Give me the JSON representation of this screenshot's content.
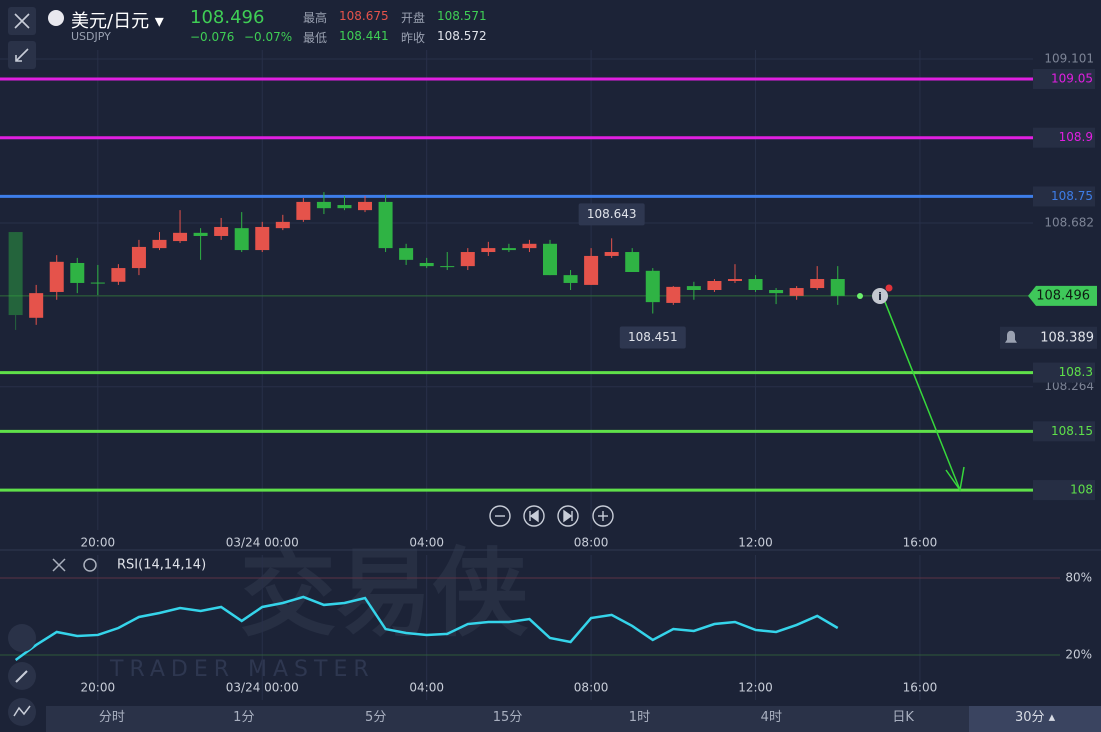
{
  "header": {
    "pair": "美元/日元",
    "symbol": "USDJPY",
    "price": "108.496",
    "change": "−0.076",
    "change_pct": "−0.07%",
    "high_label": "最高",
    "high": "108.675",
    "open_label": "开盘",
    "open": "108.571",
    "low_label": "最低",
    "low": "108.441",
    "prev_label": "昨收",
    "prev": "108.572"
  },
  "watermark": {
    "cn": "交易侠",
    "en": "TRADER MASTER"
  },
  "tabs": [
    "分时",
    "1分",
    "5分",
    "15分",
    "1时",
    "4时",
    "日K",
    "30分"
  ],
  "chart_data": [
    {
      "type": "candlestick",
      "up_color": "#e5534b",
      "down_color": "#2fb344",
      "x": [
        -6,
        -5.5,
        -5,
        -4.5,
        -4,
        -3.5,
        -3,
        -2.5,
        -2,
        -1.5,
        -1,
        -0.5,
        0,
        0.5,
        1,
        1.5,
        2,
        2.5,
        3,
        3.5,
        4,
        4.5,
        5,
        5.5,
        6,
        6.5,
        7,
        7.5,
        8,
        8.5,
        9,
        9.5,
        10,
        10.5,
        11,
        11.5,
        12,
        12.5,
        13,
        13.5,
        14
      ],
      "open": [
        108.659,
        108.44,
        108.506,
        108.58,
        108.53,
        108.532,
        108.567,
        108.618,
        108.636,
        108.657,
        108.649,
        108.669,
        108.613,
        108.669,
        108.69,
        108.736,
        108.728,
        108.715,
        108.736,
        108.618,
        108.58,
        108.572,
        108.572,
        108.608,
        108.618,
        108.618,
        108.629,
        108.549,
        108.524,
        108.598,
        108.608,
        108.56,
        108.478,
        108.521,
        108.511,
        108.534,
        108.539,
        108.511,
        108.496,
        108.516,
        108.539
      ],
      "high": [
        108.659,
        108.524,
        108.6,
        108.593,
        108.575,
        108.577,
        108.639,
        108.659,
        108.715,
        108.669,
        108.695,
        108.71,
        108.685,
        108.703,
        108.746,
        108.761,
        108.751,
        108.751,
        108.754,
        108.629,
        108.593,
        108.608,
        108.618,
        108.634,
        108.629,
        108.639,
        108.639,
        108.562,
        108.618,
        108.643,
        108.618,
        108.567,
        108.521,
        108.532,
        108.539,
        108.577,
        108.549,
        108.516,
        108.521,
        108.572,
        108.572
      ],
      "low": [
        108.409,
        108.422,
        108.486,
        108.503,
        108.498,
        108.524,
        108.549,
        108.613,
        108.631,
        108.588,
        108.639,
        108.608,
        108.608,
        108.664,
        108.685,
        108.705,
        108.715,
        108.71,
        108.608,
        108.575,
        108.567,
        108.562,
        108.562,
        108.598,
        108.608,
        108.608,
        108.549,
        108.511,
        108.524,
        108.593,
        108.557,
        108.451,
        108.473,
        108.486,
        108.506,
        108.529,
        108.506,
        108.475,
        108.486,
        108.511,
        108.473
      ],
      "close": [
        108.447,
        108.503,
        108.583,
        108.529,
        108.529,
        108.567,
        108.621,
        108.639,
        108.657,
        108.649,
        108.672,
        108.613,
        108.672,
        108.685,
        108.736,
        108.72,
        108.72,
        108.736,
        108.618,
        108.588,
        108.572,
        108.571,
        108.608,
        108.618,
        108.613,
        108.629,
        108.549,
        108.529,
        108.598,
        108.608,
        108.557,
        108.48,
        108.519,
        108.511,
        108.534,
        108.539,
        108.511,
        108.503,
        108.516,
        108.539,
        108.496
      ],
      "xlim": [
        -6.38,
        18.75
      ],
      "xticks": [
        {
          "value": -4,
          "label": "20:00"
        },
        {
          "value": 0,
          "label": "03/24 00:00"
        },
        {
          "value": 4,
          "label": "04:00"
        },
        {
          "value": 8,
          "label": "08:00"
        },
        {
          "value": 12,
          "label": "12:00"
        },
        {
          "value": 16,
          "label": "16:00"
        }
      ],
      "ylim": [
        107.898,
        109.124
      ],
      "yticks": [
        109.101,
        108.682,
        108.264
      ],
      "levels": [
        {
          "value": 109.05,
          "color": "#e01fe0"
        },
        {
          "value": 108.9,
          "color": "#e01fe0"
        },
        {
          "value": 108.75,
          "color": "#3d7de8"
        },
        {
          "value": 108.3,
          "color": "#5fe04a"
        },
        {
          "value": 108.15,
          "color": "#5fe04a"
        },
        {
          "value": 108,
          "color": "#5fe04a"
        }
      ],
      "last": 108.496,
      "alert": 108.389,
      "high_marker": {
        "value": 108.643,
        "x": 8.5
      },
      "low_marker": {
        "value": 108.451,
        "x": 9.5
      }
    },
    {
      "type": "line",
      "x": [
        -6,
        -5.5,
        -5,
        -4.5,
        -4,
        -3.5,
        -3,
        -2.5,
        -2,
        -1.5,
        -1,
        -0.5,
        0,
        0.5,
        1,
        1.5,
        2,
        2.5,
        3,
        3.5,
        4,
        4.5,
        5,
        5.5,
        6,
        6.5,
        7,
        7.5,
        8,
        8.5,
        9,
        9.5,
        10,
        10.5,
        11,
        11.5,
        12,
        12.5,
        13,
        13.5,
        14
      ],
      "series": [
        {
          "name": "RSI(14,14,14)",
          "color": "#35d4ea",
          "values": [
            16.1,
            27.8,
            37.9,
            34.8,
            35.6,
            41,
            49.6,
            52.7,
            56.6,
            54.3,
            57.4,
            46.5,
            57.4,
            60.5,
            65.2,
            59,
            60.5,
            64.4,
            40.2,
            37.1,
            35.6,
            36.4,
            44.1,
            45.7,
            45.7,
            48,
            33.2,
            30.1,
            48.8,
            51.2,
            42.6,
            31.7,
            40.2,
            38.7,
            44.1,
            45.7,
            39.5,
            37.9,
            43.4,
            50.4,
            41
          ]
        }
      ],
      "xlim": [
        -6.38,
        18.75
      ],
      "xticks": [
        {
          "value": -4,
          "label": "20:00"
        },
        {
          "value": 0,
          "label": "03/24 00:00"
        },
        {
          "value": 4,
          "label": "04:00"
        },
        {
          "value": 8,
          "label": "08:00"
        },
        {
          "value": 12,
          "label": "12:00"
        },
        {
          "value": 16,
          "label": "16:00"
        }
      ],
      "ylim": [
        -15.1,
        97.9
      ],
      "yticks": [
        {
          "value": 80,
          "label": "80%"
        },
        {
          "value": 20,
          "label": "20%"
        }
      ]
    }
  ]
}
